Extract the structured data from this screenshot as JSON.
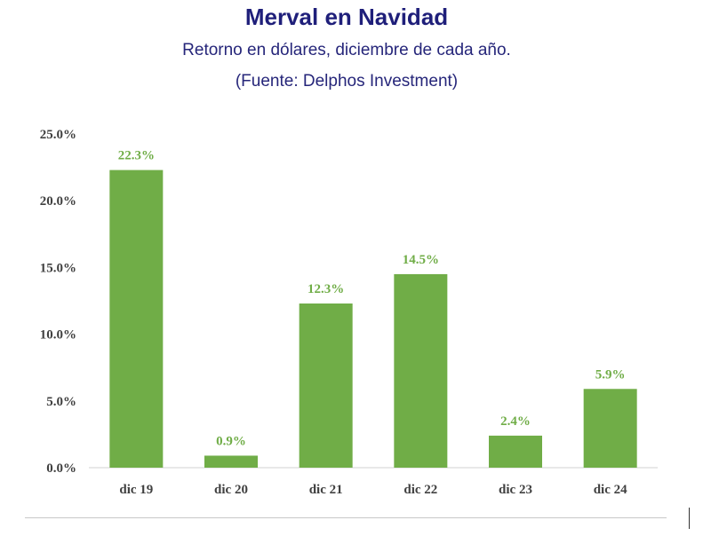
{
  "chart_data": {
    "type": "bar",
    "title": "Merval en Navidad",
    "subtitle": "Retorno en dólares, diciembre de cada año.",
    "source": "(Fuente: Delphos Investment)",
    "categories": [
      "dic 19",
      "dic 20",
      "dic 21",
      "dic 22",
      "dic 23",
      "dic 24"
    ],
    "values": [
      22.3,
      0.9,
      12.3,
      14.5,
      2.4,
      5.9
    ],
    "value_labels": [
      "22.3%",
      "0.9%",
      "12.3%",
      "14.5%",
      "2.4%",
      "5.9%"
    ],
    "y_ticks": [
      0,
      5,
      10,
      15,
      20,
      25
    ],
    "y_tick_labels": [
      "0.0%",
      "5.0%",
      "10.0%",
      "15.0%",
      "20.0%",
      "25.0%"
    ],
    "ylim": [
      0,
      25
    ],
    "xlabel": "",
    "ylabel": "",
    "grid": false,
    "legend": "none",
    "bar_color": "#70ad47",
    "label_color": "#70ad47",
    "title_color": "#1f1f7a"
  }
}
